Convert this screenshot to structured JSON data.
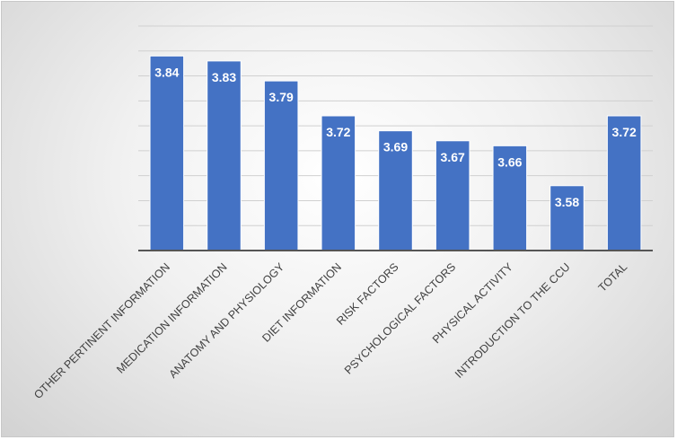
{
  "chart_data": {
    "type": "bar",
    "categories": [
      "OTHER PERTINENT INFORMATION",
      "MEDICATION INFORMATION",
      "ANATOMY AND PHYSIOLOGY",
      "DIET INFORMATION",
      "RISK FACTORS",
      "PSYCHOLOGICAL FACTORS",
      "PHYSICAL ACTIVITY",
      "INTRODUCTION TO THE CCU",
      "TOTAL"
    ],
    "values": [
      3.84,
      3.83,
      3.79,
      3.72,
      3.69,
      3.67,
      3.66,
      3.58,
      3.72
    ],
    "data_labels": [
      "3.84",
      "3.83",
      "3.79",
      "3.72",
      "3.69",
      "3.67",
      "3.66",
      "3.58",
      "3.72"
    ],
    "ylim": [
      3.45,
      3.9
    ],
    "grid_step": 0.05,
    "grid": true,
    "y_tick_labels_shown": false,
    "legend": "none",
    "colors": {
      "bar": "#4472C4",
      "label": "#FFFFFF",
      "axis": "#555555",
      "grid": "#D0D0D0"
    }
  }
}
